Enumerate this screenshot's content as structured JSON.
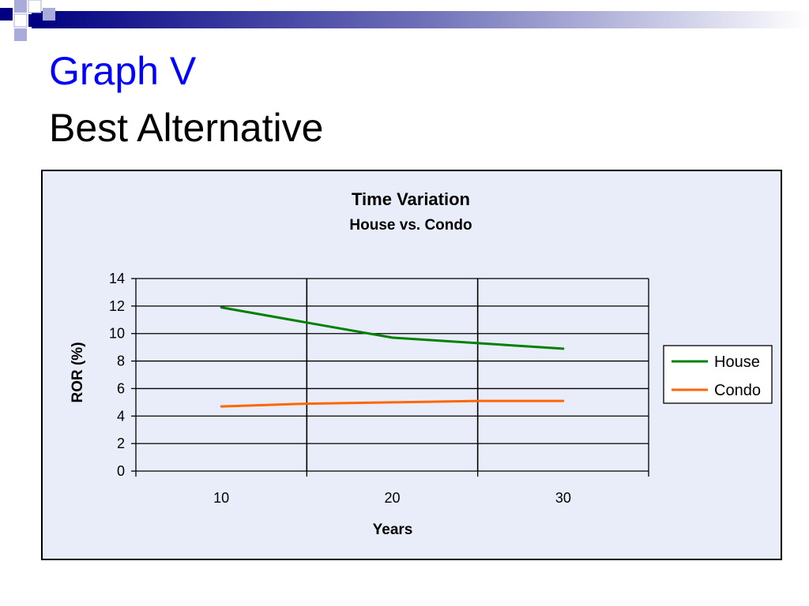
{
  "slide": {
    "title": "Graph V",
    "subtitle": "Best Alternative",
    "accent_color": "#0000ff",
    "decoration": "blue-gradient-header-bar-with-squares"
  },
  "chart_data": {
    "type": "line",
    "title": "Time Variation",
    "subtitle": "House vs. Condo",
    "xlabel": "Years",
    "ylabel": "ROR (%)",
    "x": [
      10,
      15,
      20,
      25,
      30
    ],
    "x_tick_labels": [
      "10",
      "20",
      "30"
    ],
    "xlim": [
      5,
      35
    ],
    "ylim": [
      0,
      14
    ],
    "yticks": [
      0,
      2,
      4,
      6,
      8,
      10,
      12,
      14
    ],
    "grid": true,
    "background": "#e8edf9",
    "legend": "right",
    "series": [
      {
        "name": "House",
        "color": "#008000",
        "values": [
          11.9,
          10.8,
          9.7,
          9.3,
          8.9
        ]
      },
      {
        "name": "Condo",
        "color": "#ff6600",
        "values": [
          4.7,
          4.9,
          5.0,
          5.1,
          5.1
        ]
      }
    ]
  }
}
